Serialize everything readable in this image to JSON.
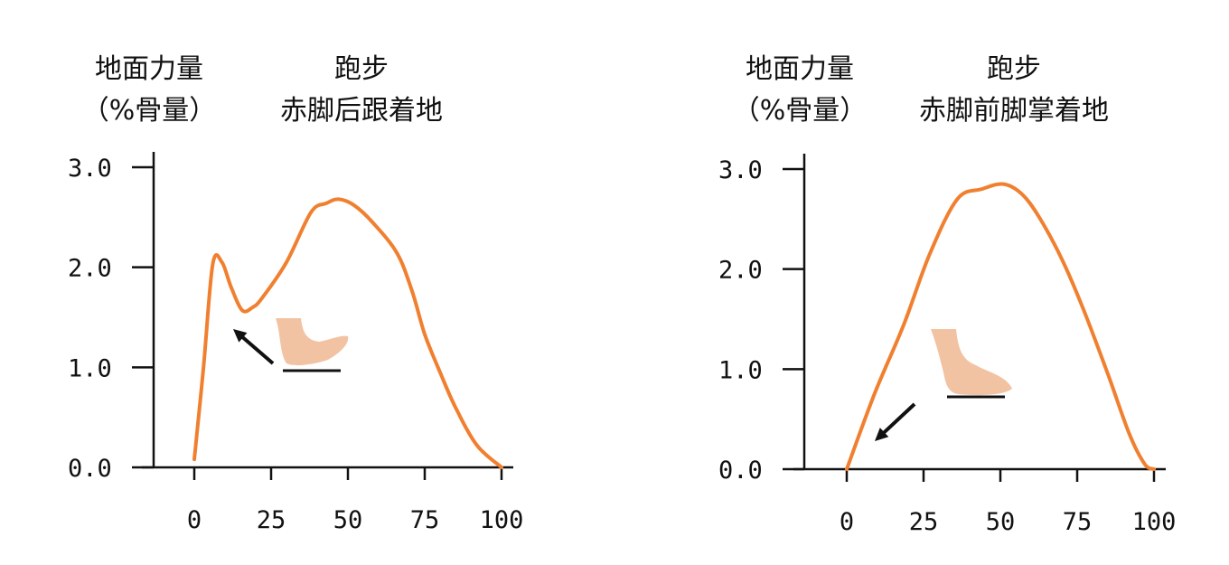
{
  "chart_data": [
    {
      "type": "line",
      "ylabel": "地面力量",
      "ylabel_unit": "（%骨量）",
      "title": "跑步",
      "subtitle": "赤脚后跟着地",
      "xlim": [
        0,
        100
      ],
      "ylim": [
        0,
        3
      ],
      "xticks": [
        "0",
        "25",
        "50",
        "75",
        "100"
      ],
      "yticks": [
        "0.0",
        "1.0",
        "2.0",
        "3.0"
      ],
      "x": [
        0,
        3,
        6,
        9,
        12,
        15.6,
        19,
        22,
        30,
        38,
        43,
        47,
        52,
        58,
        66,
        71,
        75,
        80,
        85,
        92,
        100
      ],
      "y": [
        0.08,
        1.0,
        2.03,
        2.05,
        1.8,
        1.57,
        1.6,
        1.69,
        2.05,
        2.55,
        2.64,
        2.68,
        2.62,
        2.45,
        2.14,
        1.75,
        1.33,
        0.95,
        0.6,
        0.22,
        0
      ],
      "color": "#f08030",
      "annotation": "heel-strike foot illustration with arrow to impact peak"
    },
    {
      "type": "line",
      "ylabel": "地面力量",
      "ylabel_unit": "（%骨量）",
      "title": "跑步",
      "subtitle": "赤脚前脚掌着地",
      "xlim": [
        0,
        100
      ],
      "ylim": [
        0,
        3
      ],
      "xticks": [
        "0",
        "25",
        "50",
        "75",
        "100"
      ],
      "yticks": [
        "0.0",
        "1.0",
        "2.0",
        "3.0"
      ],
      "x": [
        0,
        9,
        18.5,
        27,
        36,
        44,
        51,
        57,
        62.6,
        70,
        77,
        85,
        92,
        97,
        100
      ],
      "y": [
        0,
        0.75,
        1.44,
        2.15,
        2.7,
        2.8,
        2.85,
        2.75,
        2.52,
        2.1,
        1.6,
        0.95,
        0.35,
        0.05,
        0
      ],
      "color": "#f08030",
      "annotation": "forefoot-strike foot illustration with arrow toward origin"
    }
  ]
}
